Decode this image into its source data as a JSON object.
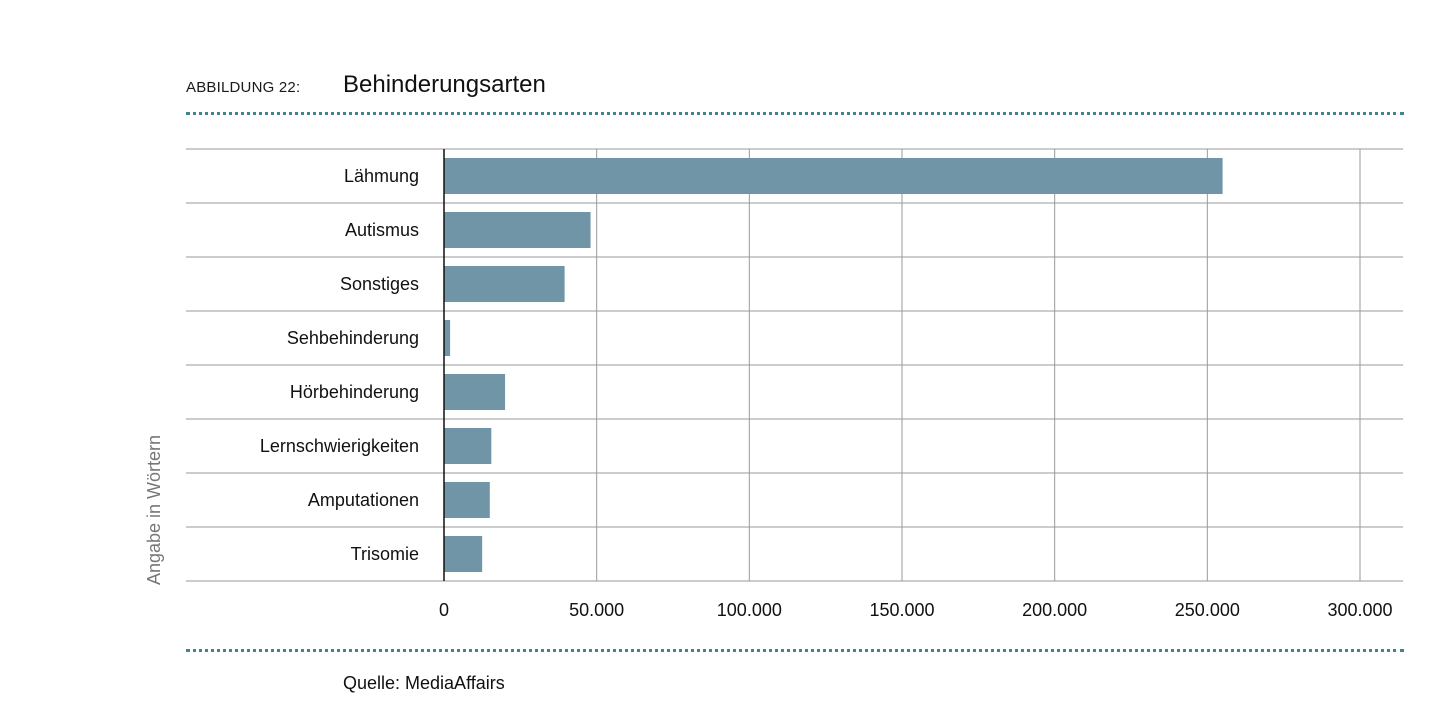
{
  "header": {
    "figure_label": "ABBILDUNG 22:",
    "title": "Behinderungsarten"
  },
  "footer": {
    "source": "Quelle: MediaAffairs"
  },
  "colors": {
    "bar": "#7095a7",
    "rule": "#3d8594",
    "grid": "#9a9a9a",
    "axis": "#111111"
  },
  "chart_data": {
    "type": "bar",
    "orientation": "horizontal",
    "title": "Behinderungsarten",
    "ylabel": "Angabe in Wörtern",
    "xlabel": "",
    "categories": [
      "Lähmung",
      "Autismus",
      "Sonstiges",
      "Sehbehinderung",
      "Hörbehinderung",
      "Lernschwierigkeiten",
      "Amputationen",
      "Trisomie"
    ],
    "values": [
      255000,
      48000,
      39500,
      2000,
      20000,
      15500,
      15000,
      12500
    ],
    "xlim": [
      0,
      300000
    ],
    "xticks": [
      0,
      50000,
      100000,
      150000,
      200000,
      250000,
      300000
    ],
    "xtick_labels": [
      "0",
      "50.000",
      "100.000",
      "150.000",
      "200.000",
      "250.000",
      "300.000"
    ],
    "grid": true,
    "legend": "none"
  }
}
